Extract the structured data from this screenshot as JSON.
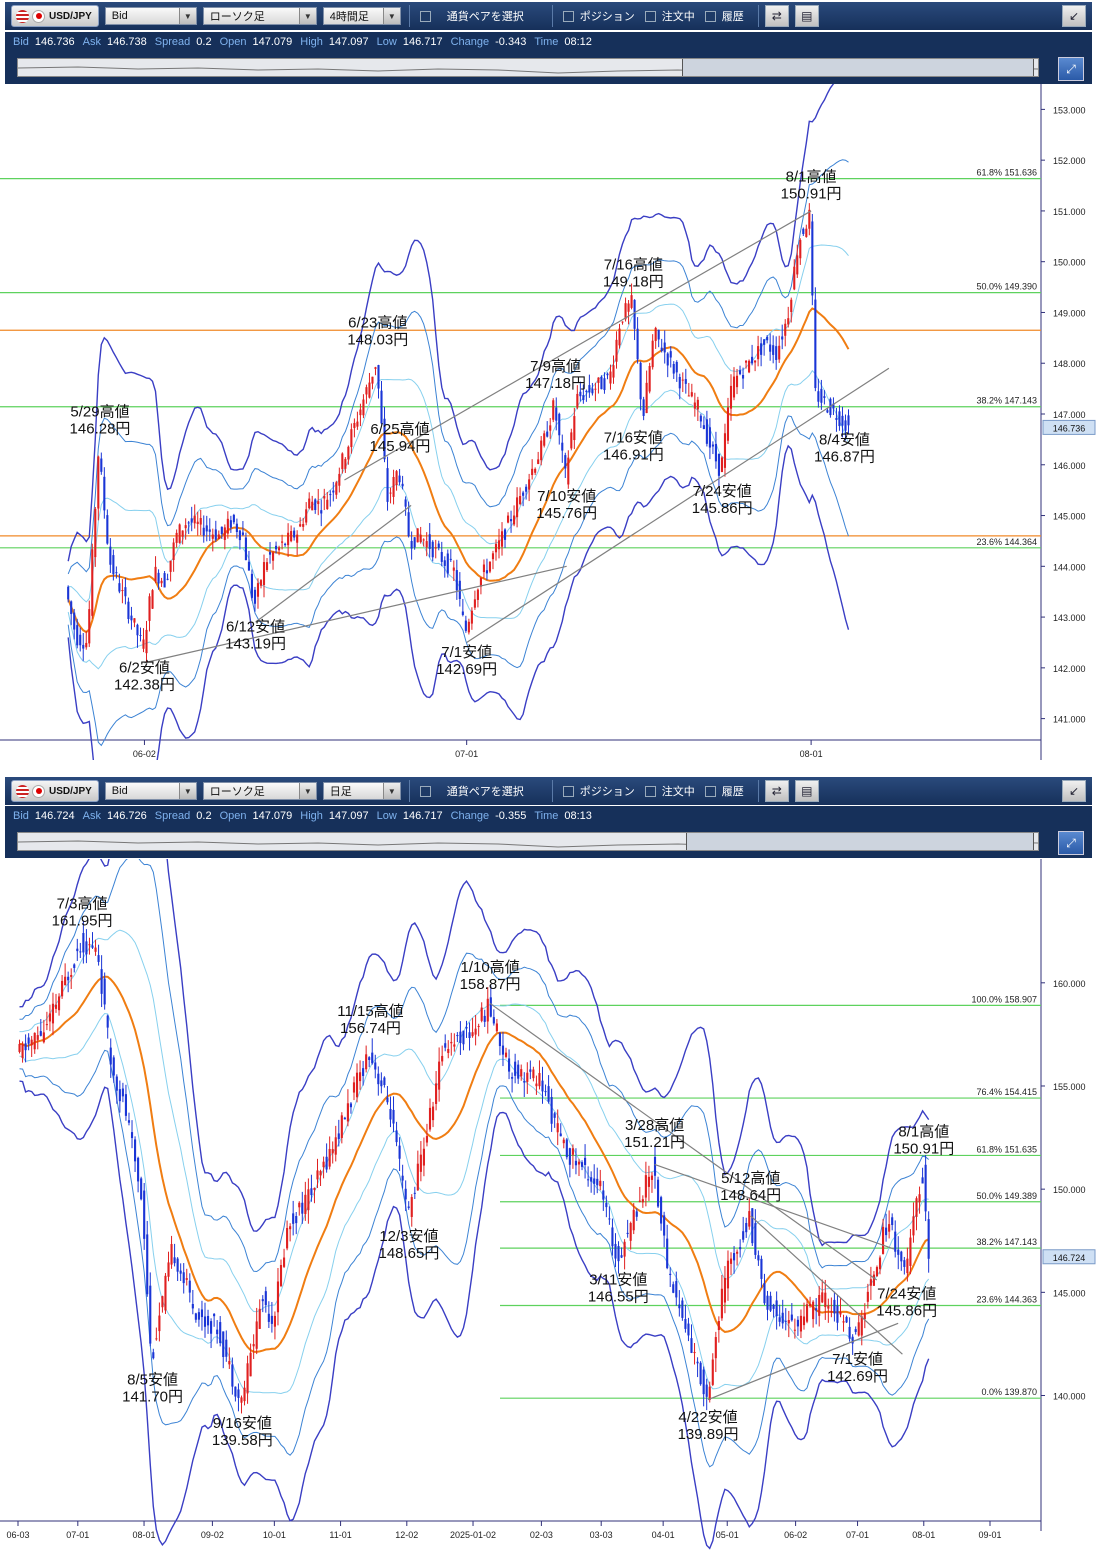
{
  "panels": [
    {
      "toolbar": {
        "pair": "USD/JPY",
        "price_type": "Bid",
        "chart_style": "ローソク足",
        "timeframe": "4時間足",
        "pair_select_label": "通貨ペアを選択",
        "position_label": "ポジション",
        "order_label": "注文中",
        "history_label": "履歴"
      },
      "quote": {
        "bid_label": "Bid",
        "bid": "146.736",
        "ask_label": "Ask",
        "ask": "146.738",
        "spread_label": "Spread",
        "spread": "0.2",
        "open_label": "Open",
        "open": "147.079",
        "high_label": "High",
        "high": "147.097",
        "low_label": "Low",
        "low": "146.717",
        "change_label": "Change",
        "change": "-0.343",
        "time_label": "Time",
        "time": "08:12"
      },
      "colors": {
        "ma": "#f07d12",
        "band_outer": "#3a3ec4",
        "band_mid": "#3c83d4",
        "band_inner": "#87d0ee",
        "fib": "#5ed25e",
        "level": "#f08a28",
        "trend": "#808080",
        "up": "#e02020",
        "down": "#1a35d6"
      }
    },
    {
      "toolbar": {
        "pair": "USD/JPY",
        "price_type": "Bid",
        "chart_style": "ローソク足",
        "timeframe": "日足",
        "pair_select_label": "通貨ペアを選択",
        "position_label": "ポジション",
        "order_label": "注文中",
        "history_label": "履歴"
      },
      "quote": {
        "bid_label": "Bid",
        "bid": "146.724",
        "ask_label": "Ask",
        "ask": "146.726",
        "spread_label": "Spread",
        "spread": "0.2",
        "open_label": "Open",
        "open": "147.079",
        "high_label": "High",
        "high": "147.097",
        "low_label": "Low",
        "low": "146.717",
        "change_label": "Change",
        "change": "-0.355",
        "time_label": "Time",
        "time": "08:13"
      },
      "colors": {
        "ma": "#f07d12",
        "band_outer": "#3a3ec4",
        "band_mid": "#3c83d4",
        "band_inner": "#87d0ee",
        "fib": "#5ed25e",
        "trend": "#808080",
        "up": "#e02020",
        "down": "#1a35d6"
      }
    }
  ],
  "chart_data": [
    {
      "type": "candlestick",
      "timeframe": "4時間足",
      "ylim": [
        140.5,
        153.5
      ],
      "y_ticks": [
        "141.000",
        "142.000",
        "143.000",
        "144.000",
        "145.000",
        "146.000",
        "147.000",
        "148.000",
        "149.000",
        "150.000",
        "151.000",
        "152.000",
        "153.000"
      ],
      "x_ticks": [
        {
          "label": "06-02",
          "x": "2025-06-02"
        },
        {
          "label": "07-01",
          "x": "2025-07-01"
        },
        {
          "label": "08-01",
          "x": "2025-08-01"
        }
      ],
      "current_price": "146.736",
      "fib_levels": [
        {
          "pct": "61.8%",
          "value": "151.636"
        },
        {
          "pct": "50.0%",
          "value": "149.390"
        },
        {
          "pct": "38.2%",
          "value": "147.143"
        },
        {
          "pct": "23.6%",
          "value": "144.364"
        }
      ],
      "horizontal_levels": [
        148.65,
        144.6
      ],
      "closes": [
        {
          "date": "2025-05-26",
          "close": 143.6
        },
        {
          "date": "2025-05-27",
          "close": 142.6
        },
        {
          "date": "2025-05-28",
          "close": 142.5
        },
        {
          "date": "2025-05-29",
          "close": 146.28
        },
        {
          "date": "2025-05-30",
          "close": 144.1
        },
        {
          "date": "2025-06-02",
          "close": 142.38
        },
        {
          "date": "2025-06-03",
          "close": 143.9
        },
        {
          "date": "2025-06-04",
          "close": 143.7
        },
        {
          "date": "2025-06-05",
          "close": 144.6
        },
        {
          "date": "2025-06-06",
          "close": 144.9
        },
        {
          "date": "2025-06-09",
          "close": 144.6
        },
        {
          "date": "2025-06-10",
          "close": 144.9
        },
        {
          "date": "2025-06-11",
          "close": 144.6
        },
        {
          "date": "2025-06-12",
          "close": 143.19
        },
        {
          "date": "2025-06-13",
          "close": 144.1
        },
        {
          "date": "2025-06-16",
          "close": 144.7
        },
        {
          "date": "2025-06-17",
          "close": 145.3
        },
        {
          "date": "2025-06-18",
          "close": 145.2
        },
        {
          "date": "2025-06-19",
          "close": 145.5
        },
        {
          "date": "2025-06-20",
          "close": 146.1
        },
        {
          "date": "2025-06-23",
          "close": 148.03
        },
        {
          "date": "2025-06-24",
          "close": 145.3
        },
        {
          "date": "2025-06-25",
          "close": 145.94
        },
        {
          "date": "2025-06-26",
          "close": 144.5
        },
        {
          "date": "2025-06-27",
          "close": 144.6
        },
        {
          "date": "2025-06-30",
          "close": 143.9
        },
        {
          "date": "2025-07-01",
          "close": 142.69
        },
        {
          "date": "2025-07-02",
          "close": 143.6
        },
        {
          "date": "2025-07-03",
          "close": 144.0
        },
        {
          "date": "2025-07-04",
          "close": 144.4
        },
        {
          "date": "2025-07-07",
          "close": 145.9
        },
        {
          "date": "2025-07-08",
          "close": 146.4
        },
        {
          "date": "2025-07-09",
          "close": 147.18
        },
        {
          "date": "2025-07-10",
          "close": 145.76
        },
        {
          "date": "2025-07-11",
          "close": 147.3
        },
        {
          "date": "2025-07-14",
          "close": 147.7
        },
        {
          "date": "2025-07-15",
          "close": 148.9
        },
        {
          "date": "2025-07-16",
          "close": 149.18
        },
        {
          "date": "2025-07-17",
          "close": 146.91
        },
        {
          "date": "2025-07-18",
          "close": 148.6
        },
        {
          "date": "2025-07-21",
          "close": 147.4
        },
        {
          "date": "2025-07-22",
          "close": 147.1
        },
        {
          "date": "2025-07-23",
          "close": 146.4
        },
        {
          "date": "2025-07-24",
          "close": 145.86
        },
        {
          "date": "2025-07-25",
          "close": 147.6
        },
        {
          "date": "2025-07-28",
          "close": 148.4
        },
        {
          "date": "2025-07-29",
          "close": 148.2
        },
        {
          "date": "2025-07-30",
          "close": 148.9
        },
        {
          "date": "2025-07-31",
          "close": 150.4
        },
        {
          "date": "2025-08-01",
          "close": 150.91
        },
        {
          "date": "2025-08-01",
          "close": 147.4
        },
        {
          "date": "2025-08-04",
          "close": 146.87
        },
        {
          "date": "2025-08-04",
          "close": 146.736
        }
      ],
      "annotations": [
        {
          "date": "2025-05-29",
          "kind": "high",
          "line1": "5/29高値",
          "line2": "146.28円",
          "value": 146.28
        },
        {
          "date": "2025-06-02",
          "kind": "low",
          "line1": "6/2安値",
          "line2": "142.38円",
          "value": 142.38
        },
        {
          "date": "2025-06-12",
          "kind": "low",
          "line1": "6/12安値",
          "line2": "143.19円",
          "value": 143.19
        },
        {
          "date": "2025-06-23",
          "kind": "high",
          "line1": "6/23高値",
          "line2": "148.03円",
          "value": 148.03
        },
        {
          "date": "2025-06-25",
          "kind": "high",
          "line1": "6/25高値",
          "line2": "145.94円",
          "value": 145.94
        },
        {
          "date": "2025-07-01",
          "kind": "low",
          "line1": "7/1安値",
          "line2": "142.69円",
          "value": 142.69
        },
        {
          "date": "2025-07-09",
          "kind": "high",
          "line1": "7/9高値",
          "line2": "147.18円",
          "value": 147.18
        },
        {
          "date": "2025-07-10",
          "kind": "low",
          "line1": "7/10安値",
          "line2": "145.76円",
          "value": 145.76
        },
        {
          "date": "2025-07-16",
          "kind": "high",
          "line1": "7/16高値",
          "line2": "149.18円",
          "value": 149.18
        },
        {
          "date": "2025-07-16",
          "kind": "low",
          "line1": "7/16安値",
          "line2": "146.91円",
          "value": 146.91
        },
        {
          "date": "2025-07-24",
          "kind": "low",
          "line1": "7/24安値",
          "line2": "145.86円",
          "value": 145.86
        },
        {
          "date": "2025-08-01",
          "kind": "high",
          "line1": "8/1高値",
          "line2": "150.91円",
          "value": 150.91
        },
        {
          "date": "2025-08-04",
          "kind": "low",
          "line1": "8/4安値",
          "line2": "146.87円",
          "value": 146.87
        }
      ],
      "trendlines": [
        {
          "from": [
            "2025-06-02",
            142.1
          ],
          "to": [
            "2025-07-10",
            144.0
          ]
        },
        {
          "from": [
            "2025-06-12",
            142.9
          ],
          "to": [
            "2025-06-26",
            145.2
          ]
        },
        {
          "from": [
            "2025-07-01",
            142.5
          ],
          "to": [
            "2025-08-08",
            147.9
          ]
        },
        {
          "from": [
            "2025-06-20",
            145.7
          ],
          "to": [
            "2025-08-01",
            151.0
          ]
        }
      ]
    },
    {
      "type": "candlestick",
      "timeframe": "日足",
      "ylim": [
        134.5,
        166.0
      ],
      "y_ticks": [
        "140.000",
        "145.000",
        "150.000",
        "155.000",
        "160.000"
      ],
      "x_ticks": [
        {
          "label": "06-03",
          "x": "2024-06-03"
        },
        {
          "label": "07-01",
          "x": "2024-07-01"
        },
        {
          "label": "08-01",
          "x": "2024-08-01"
        },
        {
          "label": "09-02",
          "x": "2024-09-02"
        },
        {
          "label": "10-01",
          "x": "2024-10-01"
        },
        {
          "label": "11-01",
          "x": "2024-11-01"
        },
        {
          "label": "12-02",
          "x": "2024-12-02"
        },
        {
          "label": "2025-01-02",
          "x": "2025-01-02"
        },
        {
          "label": "02-03",
          "x": "2025-02-03"
        },
        {
          "label": "03-03",
          "x": "2025-03-03"
        },
        {
          "label": "04-01",
          "x": "2025-04-01"
        },
        {
          "label": "05-01",
          "x": "2025-05-01"
        },
        {
          "label": "06-02",
          "x": "2025-06-02"
        },
        {
          "label": "07-01",
          "x": "2025-07-01"
        },
        {
          "label": "08-01",
          "x": "2025-08-01"
        },
        {
          "label": "09-01",
          "x": "2025-09-01"
        }
      ],
      "current_price": "146.724",
      "fib_levels": [
        {
          "pct": "100.0%",
          "value": "158.907"
        },
        {
          "pct": "76.4%",
          "value": "154.415"
        },
        {
          "pct": "61.8%",
          "value": "151.635"
        },
        {
          "pct": "50.0%",
          "value": "149.389"
        },
        {
          "pct": "38.2%",
          "value": "147.143"
        },
        {
          "pct": "23.6%",
          "value": "144.363"
        },
        {
          "pct": "0.0%",
          "value": "139.870"
        }
      ],
      "closes": [
        {
          "date": "2024-06-03",
          "close": 156.5
        },
        {
          "date": "2024-06-17",
          "close": 157.8
        },
        {
          "date": "2024-07-03",
          "close": 161.95
        },
        {
          "date": "2024-07-11",
          "close": 161.5
        },
        {
          "date": "2024-07-17",
          "close": 156.2
        },
        {
          "date": "2024-07-24",
          "close": 153.8
        },
        {
          "date": "2024-08-01",
          "close": 149.4
        },
        {
          "date": "2024-08-05",
          "close": 141.7
        },
        {
          "date": "2024-08-15",
          "close": 147.1
        },
        {
          "date": "2024-08-27",
          "close": 143.8
        },
        {
          "date": "2024-09-05",
          "close": 143.3
        },
        {
          "date": "2024-09-16",
          "close": 139.58
        },
        {
          "date": "2024-09-26",
          "close": 144.8
        },
        {
          "date": "2024-10-01",
          "close": 143.6
        },
        {
          "date": "2024-10-08",
          "close": 148.2
        },
        {
          "date": "2024-10-21",
          "close": 150.2
        },
        {
          "date": "2024-11-01",
          "close": 152.8
        },
        {
          "date": "2024-11-15",
          "close": 156.74
        },
        {
          "date": "2024-11-25",
          "close": 153.8
        },
        {
          "date": "2024-12-03",
          "close": 148.65
        },
        {
          "date": "2024-12-12",
          "close": 152.7
        },
        {
          "date": "2024-12-20",
          "close": 157.0
        },
        {
          "date": "2025-01-02",
          "close": 157.6
        },
        {
          "date": "2025-01-10",
          "close": 158.87
        },
        {
          "date": "2025-01-20",
          "close": 155.8
        },
        {
          "date": "2025-02-03",
          "close": 155.3
        },
        {
          "date": "2025-02-14",
          "close": 152.0
        },
        {
          "date": "2025-03-03",
          "close": 150.2
        },
        {
          "date": "2025-03-11",
          "close": 146.55
        },
        {
          "date": "2025-03-28",
          "close": 151.21
        },
        {
          "date": "2025-04-04",
          "close": 146.1
        },
        {
          "date": "2025-04-22",
          "close": 139.89
        },
        {
          "date": "2025-05-01",
          "close": 145.9
        },
        {
          "date": "2025-05-12",
          "close": 148.64
        },
        {
          "date": "2025-05-20",
          "close": 144.4
        },
        {
          "date": "2025-06-02",
          "close": 143.4
        },
        {
          "date": "2025-06-16",
          "close": 144.7
        },
        {
          "date": "2025-07-01",
          "close": 142.69
        },
        {
          "date": "2025-07-10",
          "close": 146.3
        },
        {
          "date": "2025-07-16",
          "close": 148.6
        },
        {
          "date": "2025-07-24",
          "close": 145.86
        },
        {
          "date": "2025-08-01",
          "close": 150.91
        },
        {
          "date": "2025-08-04",
          "close": 146.724
        }
      ],
      "annotations": [
        {
          "date": "2024-07-03",
          "kind": "high",
          "line1": "7/3高値",
          "line2": "161.95円",
          "value": 161.95
        },
        {
          "date": "2024-08-05",
          "kind": "low",
          "line1": "8/5安値",
          "line2": "141.70円",
          "value": 141.7
        },
        {
          "date": "2024-09-16",
          "kind": "low",
          "line1": "9/16安値",
          "line2": "139.58円",
          "value": 139.58
        },
        {
          "date": "2024-11-15",
          "kind": "high",
          "line1": "11/15高値",
          "line2": "156.74円",
          "value": 156.74
        },
        {
          "date": "2024-12-03",
          "kind": "low",
          "line1": "12/3安値",
          "line2": "148.65円",
          "value": 148.65
        },
        {
          "date": "2025-01-10",
          "kind": "high",
          "line1": "1/10高値",
          "line2": "158.87円",
          "value": 158.87
        },
        {
          "date": "2025-03-11",
          "kind": "low",
          "line1": "3/11安値",
          "line2": "146.55円",
          "value": 146.55
        },
        {
          "date": "2025-03-28",
          "kind": "high",
          "line1": "3/28高値",
          "line2": "151.21円",
          "value": 151.21
        },
        {
          "date": "2025-04-22",
          "kind": "low",
          "line1": "4/22安値",
          "line2": "139.89円",
          "value": 139.89
        },
        {
          "date": "2025-05-12",
          "kind": "high",
          "line1": "5/12高値",
          "line2": "148.64円",
          "value": 148.64
        },
        {
          "date": "2025-07-01",
          "kind": "low",
          "line1": "7/1安値",
          "line2": "142.69円",
          "value": 142.69
        },
        {
          "date": "2025-07-24",
          "kind": "low",
          "line1": "7/24安値",
          "line2": "145.86円",
          "value": 145.86
        },
        {
          "date": "2025-08-01",
          "kind": "high",
          "line1": "8/1高値",
          "line2": "150.91円",
          "value": 150.91
        }
      ],
      "trendlines": [
        {
          "from": [
            "2025-01-10",
            159.0
          ],
          "to": [
            "2025-07-10",
            145.6
          ]
        },
        {
          "from": [
            "2025-03-28",
            151.2
          ],
          "to": [
            "2025-07-18",
            147.1
          ]
        },
        {
          "from": [
            "2025-04-22",
            139.8
          ],
          "to": [
            "2025-07-20",
            143.5
          ]
        },
        {
          "from": [
            "2025-05-12",
            148.7
          ],
          "to": [
            "2025-07-22",
            142.0
          ]
        }
      ]
    }
  ]
}
